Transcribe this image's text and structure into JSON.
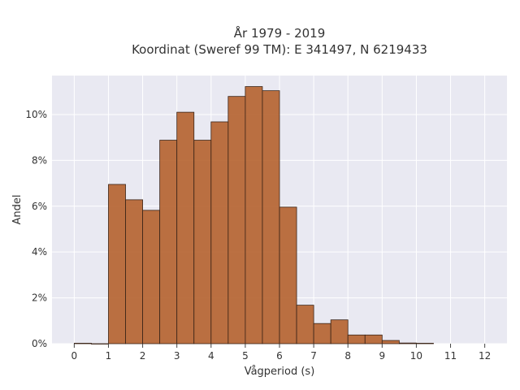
{
  "chart_data": {
    "type": "bar",
    "title_lines": [
      "År 1979 - 2019",
      "Koordinat (Sweref 99 TM): E 341497, N 6219433"
    ],
    "xlabel": "Vågperiod (s)",
    "ylabel": "Andel",
    "xlim": [
      -0.65,
      12.65
    ],
    "ylim": [
      0,
      11.7
    ],
    "xticks": [
      0,
      1,
      2,
      3,
      4,
      5,
      6,
      7,
      8,
      9,
      10,
      11,
      12
    ],
    "xtick_labels": [
      "0",
      "1",
      "2",
      "3",
      "4",
      "5",
      "6",
      "7",
      "8",
      "9",
      "10",
      "11",
      "12"
    ],
    "yticks": [
      0,
      2,
      4,
      6,
      8,
      10
    ],
    "ytick_labels": [
      "0%",
      "2%",
      "4%",
      "6%",
      "8%",
      "10%"
    ],
    "bin_width": 0.5,
    "bins": [
      {
        "x0": 0.0,
        "x1": 0.5,
        "value": 0.02
      },
      {
        "x0": 0.5,
        "x1": 1.0,
        "value": 0.0
      },
      {
        "x0": 1.0,
        "x1": 1.5,
        "value": 6.95
      },
      {
        "x0": 1.5,
        "x1": 2.0,
        "value": 6.28
      },
      {
        "x0": 2.0,
        "x1": 2.5,
        "value": 5.82
      },
      {
        "x0": 2.5,
        "x1": 3.0,
        "value": 8.88
      },
      {
        "x0": 3.0,
        "x1": 3.5,
        "value": 10.1
      },
      {
        "x0": 3.5,
        "x1": 4.0,
        "value": 8.88
      },
      {
        "x0": 4.0,
        "x1": 4.5,
        "value": 9.68
      },
      {
        "x0": 4.5,
        "x1": 5.0,
        "value": 10.79
      },
      {
        "x0": 5.0,
        "x1": 5.5,
        "value": 11.22
      },
      {
        "x0": 5.5,
        "x1": 6.0,
        "value": 11.04
      },
      {
        "x0": 6.0,
        "x1": 6.5,
        "value": 5.96
      },
      {
        "x0": 6.5,
        "x1": 7.0,
        "value": 1.68
      },
      {
        "x0": 7.0,
        "x1": 7.5,
        "value": 0.88
      },
      {
        "x0": 7.5,
        "x1": 8.0,
        "value": 1.04
      },
      {
        "x0": 8.0,
        "x1": 8.5,
        "value": 0.38
      },
      {
        "x0": 8.5,
        "x1": 9.0,
        "value": 0.38
      },
      {
        "x0": 9.0,
        "x1": 9.5,
        "value": 0.14
      },
      {
        "x0": 9.5,
        "x1": 10.0,
        "value": 0.03
      },
      {
        "x0": 10.0,
        "x1": 10.5,
        "value": 0.02
      }
    ],
    "grid": true,
    "bar_color": "#b5622e",
    "bar_edge_color": "#3a2418",
    "plot_background": "#e9e9f2",
    "grid_color": "#ffffff"
  }
}
